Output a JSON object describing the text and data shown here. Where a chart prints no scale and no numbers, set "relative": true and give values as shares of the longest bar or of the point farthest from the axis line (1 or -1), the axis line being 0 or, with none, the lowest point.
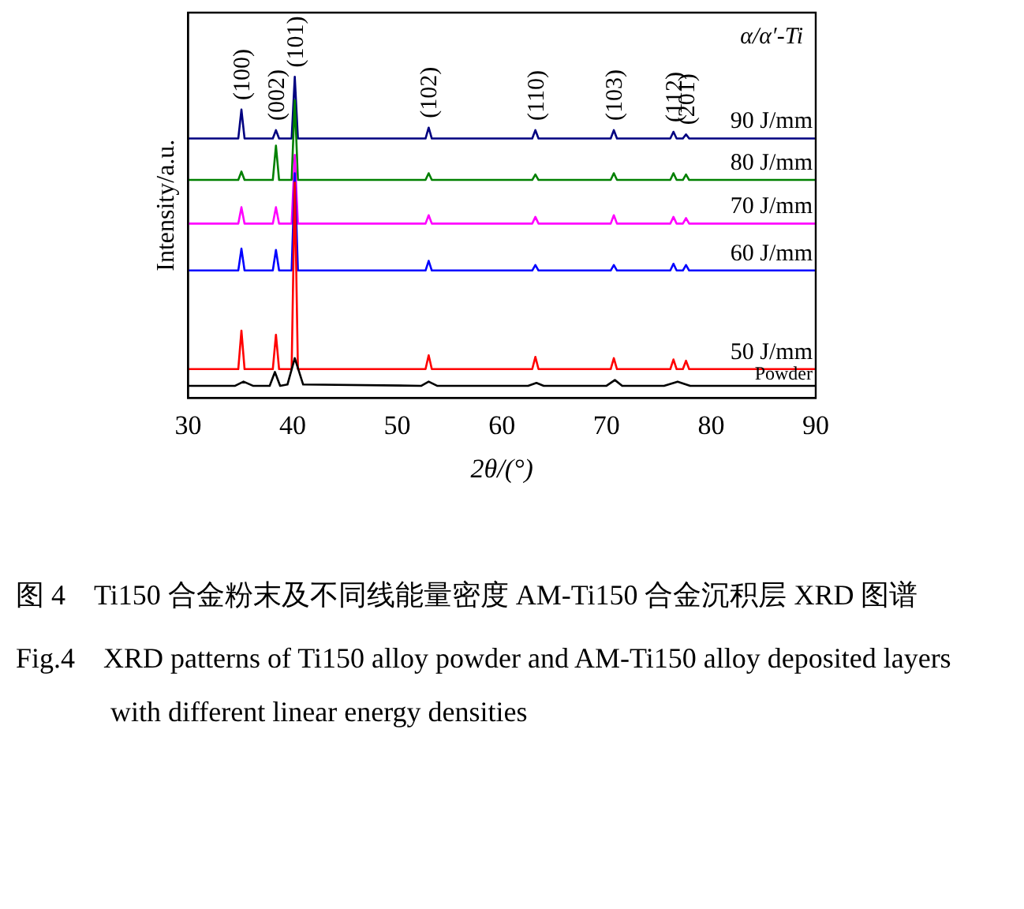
{
  "chart_data": {
    "type": "line",
    "relative": true,
    "xlabel": "2θ/(°)",
    "ylabel": "Intensity/a.u.",
    "xlim": [
      30,
      90
    ],
    "xticks": [
      30,
      40,
      50,
      60,
      70,
      80,
      90
    ],
    "tick_labels": "x",
    "grid": false,
    "legend": false,
    "marker": "none",
    "line_style": "solid",
    "x": [
      30,
      34.8,
      35.1,
      35.4,
      38.1,
      38.4,
      38.7,
      39.9,
      40.2,
      40.5,
      52.7,
      53.0,
      53.3,
      62.9,
      63.2,
      63.5,
      70.4,
      70.7,
      71.0,
      76.1,
      76.4,
      76.7,
      77.3,
      77.6,
      77.9,
      90
    ],
    "series": [
      {
        "name": "Powder",
        "color": "#000000",
        "x": [
          30,
          34.5,
          35.3,
          36.2,
          37.8,
          38.3,
          38.8,
          39.5,
          40.2,
          41.0,
          52.3,
          53.0,
          53.8,
          62.5,
          63.3,
          64.0,
          70.0,
          70.8,
          71.5,
          75.5,
          76.8,
          78.0,
          90
        ],
        "values": [
          0.038,
          0.038,
          0.051,
          0.038,
          0.038,
          0.081,
          0.038,
          0.042,
          0.124,
          0.042,
          0.038,
          0.051,
          0.038,
          0.038,
          0.047,
          0.038,
          0.038,
          0.056,
          0.038,
          0.038,
          0.051,
          0.038,
          0.038
        ]
      },
      {
        "name": "50 J/mm",
        "color": "#ff0000",
        "values": [
          0.09,
          0.09,
          0.21,
          0.09,
          0.09,
          0.197,
          0.09,
          0.09,
          0.671,
          0.09,
          0.09,
          0.133,
          0.09,
          0.09,
          0.128,
          0.09,
          0.09,
          0.124,
          0.09,
          0.09,
          0.12,
          0.09,
          0.09,
          0.116,
          0.09,
          0.09
        ]
      },
      {
        "name": "60 J/mm",
        "color": "#0000ff",
        "values": [
          0.397,
          0.397,
          0.465,
          0.397,
          0.397,
          0.461,
          0.397,
          0.397,
          0.7,
          0.397,
          0.397,
          0.427,
          0.397,
          0.397,
          0.414,
          0.397,
          0.397,
          0.414,
          0.397,
          0.397,
          0.418,
          0.397,
          0.397,
          0.414,
          0.397,
          0.397
        ]
      },
      {
        "name": "70 J/mm",
        "color": "#ff00ff",
        "values": [
          0.543,
          0.543,
          0.594,
          0.543,
          0.543,
          0.594,
          0.543,
          0.543,
          0.757,
          0.543,
          0.543,
          0.569,
          0.543,
          0.543,
          0.564,
          0.543,
          0.543,
          0.569,
          0.543,
          0.543,
          0.564,
          0.543,
          0.543,
          0.56,
          0.543,
          0.543
        ]
      },
      {
        "name": "80 J/mm",
        "color": "#008000",
        "values": [
          0.679,
          0.679,
          0.705,
          0.679,
          0.679,
          0.786,
          0.679,
          0.679,
          0.927,
          0.679,
          0.679,
          0.7,
          0.679,
          0.679,
          0.696,
          0.679,
          0.679,
          0.7,
          0.679,
          0.679,
          0.7,
          0.679,
          0.679,
          0.696,
          0.679,
          0.679
        ]
      },
      {
        "name": "90 J/mm",
        "color": "#000080",
        "values": [
          0.808,
          0.808,
          0.898,
          0.808,
          0.808,
          0.834,
          0.808,
          0.808,
          1.0,
          0.808,
          0.808,
          0.842,
          0.808,
          0.808,
          0.834,
          0.808,
          0.808,
          0.834,
          0.808,
          0.808,
          0.829,
          0.808,
          0.808,
          0.821,
          0.808,
          0.808
        ]
      }
    ],
    "annotations": [
      {
        "text": "(100)",
        "x": 35.1,
        "y": 0.898
      },
      {
        "text": "(002)",
        "x": 38.4,
        "y": 0.834
      },
      {
        "text": "(101)",
        "x": 40.2,
        "y": 1.0
      },
      {
        "text": "(102)",
        "x": 53.0,
        "y": 0.842
      },
      {
        "text": "(110)",
        "x": 63.2,
        "y": 0.834
      },
      {
        "text": "(103)",
        "x": 70.7,
        "y": 0.834
      },
      {
        "text": "(112)",
        "x": 76.4,
        "y": 0.829
      },
      {
        "text": "(201)",
        "x": 77.6,
        "y": 0.821
      },
      "α/α′-Ti",
      "图 4　Ti150 合金粉末及不同线能量密度 AM-Ti150 合金沉积层 XRD 图谱",
      "Fig.4　XRD patterns of Ti150 alloy powder and AM-Ti150 alloy deposited layers with different linear energy densities"
    ]
  }
}
